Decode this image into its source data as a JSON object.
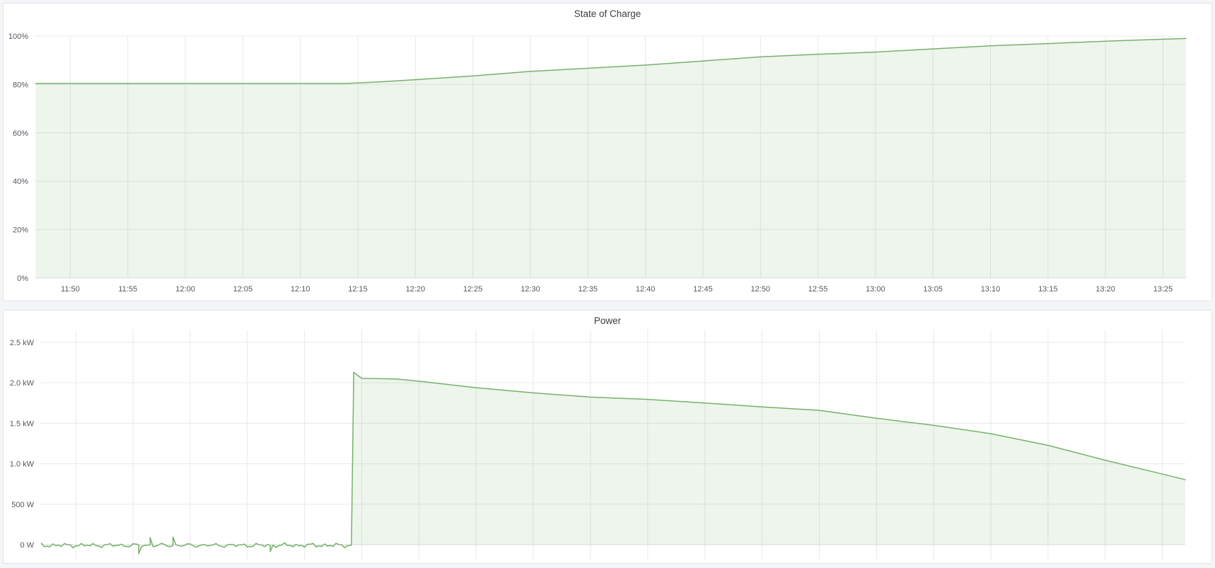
{
  "page": {
    "background": "#f4f5f9",
    "panel_background": "#ffffff"
  },
  "panels": [
    {
      "title": "State of Charge"
    },
    {
      "title": "Power"
    }
  ],
  "chart_data": [
    {
      "type": "area",
      "title": "State of Charge",
      "xlabel": "",
      "ylabel": "",
      "unit": "percent",
      "ylim": [
        0,
        100
      ],
      "x_range": [
        "11:47",
        "13:27"
      ],
      "grid": true,
      "legend": "none",
      "x_ticks": [
        "11:50",
        "11:55",
        "12:00",
        "12:05",
        "12:10",
        "12:15",
        "12:20",
        "12:25",
        "12:30",
        "12:35",
        "12:40",
        "12:45",
        "12:50",
        "12:55",
        "13:00",
        "13:05",
        "13:10",
        "13:15",
        "13:20",
        "13:25"
      ],
      "x_labels_visible": true,
      "y_ticks": [
        {
          "value": 0,
          "label": "0%"
        },
        {
          "value": 20,
          "label": "20%"
        },
        {
          "value": 40,
          "label": "40%"
        },
        {
          "value": 60,
          "label": "60%"
        },
        {
          "value": 80,
          "label": "80%"
        },
        {
          "value": 100,
          "label": "100%"
        }
      ],
      "fill_to": 0,
      "series": [
        {
          "name": "State of Charge",
          "color": "#77b16b",
          "fill": "rgba(119,177,107,0.13)",
          "points": [
            [
              "11:47",
              80.4
            ],
            [
              "12:14",
              80.4
            ],
            [
              "12:17",
              81.1
            ],
            [
              "12:20",
              82.0
            ],
            [
              "12:25",
              83.5
            ],
            [
              "12:30",
              85.4
            ],
            [
              "12:35",
              86.7
            ],
            [
              "12:40",
              88.0
            ],
            [
              "12:45",
              89.7
            ],
            [
              "12:50",
              91.4
            ],
            [
              "12:55",
              92.5
            ],
            [
              "13:00",
              93.4
            ],
            [
              "13:05",
              94.7
            ],
            [
              "13:10",
              96.0
            ],
            [
              "13:15",
              96.9
            ],
            [
              "13:20",
              97.9
            ],
            [
              "13:25",
              98.7
            ],
            [
              "13:27",
              99.0
            ]
          ]
        }
      ]
    },
    {
      "type": "area",
      "title": "Power",
      "xlabel": "",
      "ylabel": "",
      "unit": "watt",
      "ylim": [
        -180,
        2650
      ],
      "x_range": [
        "11:47",
        "13:27"
      ],
      "grid": true,
      "legend": "none",
      "x_ticks": [
        "11:50",
        "11:55",
        "12:00",
        "12:05",
        "12:10",
        "12:15",
        "12:20",
        "12:25",
        "12:30",
        "12:35",
        "12:40",
        "12:45",
        "12:50",
        "12:55",
        "13:00",
        "13:05",
        "13:10",
        "13:15",
        "13:20",
        "13:25"
      ],
      "x_labels_visible": false,
      "y_ticks": [
        {
          "value": 0,
          "label": "0 W"
        },
        {
          "value": 500,
          "label": "500 W"
        },
        {
          "value": 1000,
          "label": "1.0 kW"
        },
        {
          "value": 1500,
          "label": "1.5 kW"
        },
        {
          "value": 2000,
          "label": "2.0 kW"
        },
        {
          "value": 2500,
          "label": "2.5 kW"
        }
      ],
      "fill_to": 0,
      "baseline_noise": {
        "from": "11:47",
        "to": "12:14",
        "mean": -8,
        "amplitude": 28,
        "spikes": [
          {
            "t": "11:55.5",
            "v": -110
          },
          {
            "t": "11:56.5",
            "v": 90
          },
          {
            "t": "11:58.5",
            "v": 95
          },
          {
            "t": "12:07.0",
            "v": -85
          }
        ]
      },
      "series": [
        {
          "name": "Power",
          "color": "#77b16b",
          "fill": "rgba(119,177,107,0.13)",
          "points": [
            [
              "12:14.1",
              -5
            ],
            [
              "12:14.3",
              2130
            ],
            [
              "12:15",
              2055
            ],
            [
              "12:18",
              2048
            ],
            [
              "12:20",
              2020
            ],
            [
              "12:25",
              1940
            ],
            [
              "12:30",
              1876
            ],
            [
              "12:35",
              1823
            ],
            [
              "12:40",
              1795
            ],
            [
              "12:45",
              1751
            ],
            [
              "12:50",
              1702
            ],
            [
              "12:55",
              1660
            ],
            [
              "13:00",
              1562
            ],
            [
              "13:05",
              1475
            ],
            [
              "13:10",
              1372
            ],
            [
              "13:15",
              1227
            ],
            [
              "13:20",
              1044
            ],
            [
              "13:25",
              873
            ],
            [
              "13:27",
              803
            ]
          ]
        }
      ]
    }
  ]
}
